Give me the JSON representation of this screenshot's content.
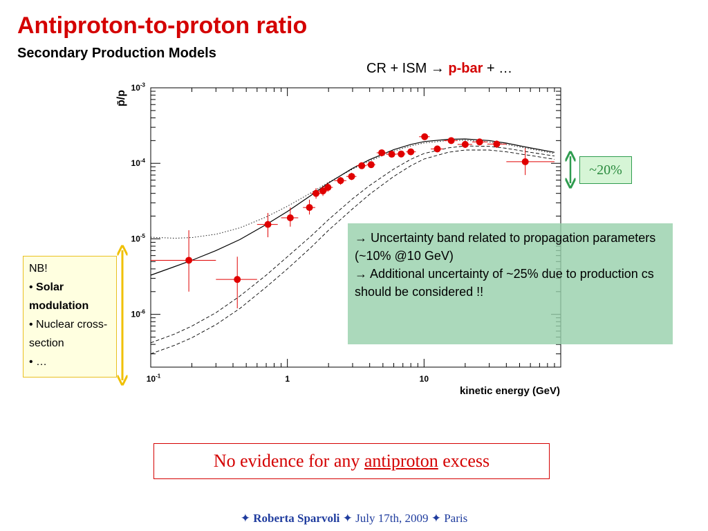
{
  "slide": {
    "title": "Antiproton-to-proton ratio",
    "subtitle": "Secondary Production Models",
    "reaction": {
      "prefix": "CR + ISM ",
      "arrow": "→",
      "product": "p-bar",
      "suffix": " + …"
    },
    "uncertainty_label": "~20%",
    "note": {
      "line1_arrow": "→",
      "line1": " Uncertainty band related to propagation parameters (~10% @10 GeV)",
      "line2_arrow": "→",
      "line2": " Additional uncertainty of ~25% due to production cs should be considered !!"
    },
    "nb": {
      "heading": "NB!",
      "bullet1": "Solar modulation",
      "bullet2": "Nuclear cross-section",
      "bullet3": "…"
    },
    "conclusion": {
      "before": "No evidence for any ",
      "emph": "antiproton",
      "after": " excess"
    },
    "footer": {
      "star": "✦",
      "author": "Roberta Sparvoli",
      "date": "July 17th, 2009",
      "place": "Paris"
    },
    "colors": {
      "title": "#d40000",
      "data_points": "#e00000",
      "arrow_green": "#2f9c4f",
      "arrow_yellow": "#f0c000",
      "footer": "#1f3c9e"
    }
  },
  "chart_data": {
    "type": "scatter",
    "ylabel": "p̄/p",
    "xlabel": "kinetic energy (GeV)",
    "x_scale": "log",
    "y_scale": "log",
    "xlim": [
      0.1,
      100
    ],
    "ylim": [
      2e-07,
      0.001
    ],
    "x_ticks": [
      {
        "value": 0.1,
        "base": "10",
        "exp": "-1"
      },
      {
        "value": 1,
        "base": "1",
        "exp": ""
      },
      {
        "value": 10,
        "base": "10",
        "exp": ""
      }
    ],
    "y_ticks": [
      {
        "value": 0.001,
        "base": "10",
        "exp": "-3"
      },
      {
        "value": 0.0001,
        "base": "10",
        "exp": "-4"
      },
      {
        "value": 1e-05,
        "base": "10",
        "exp": "-5"
      },
      {
        "value": 1e-06,
        "base": "10",
        "exp": "-6"
      }
    ],
    "points": [
      {
        "x": 0.19,
        "y": 5.2e-06,
        "xlo": 0.1,
        "xhi": 0.3,
        "ylo": 2e-06,
        "yhi": 1.3e-05
      },
      {
        "x": 0.43,
        "y": 2.9e-06,
        "xlo": 0.3,
        "xhi": 0.6,
        "ylo": 1.2e-06,
        "yhi": 5.8e-06
      },
      {
        "x": 0.72,
        "y": 1.55e-05,
        "xlo": 0.6,
        "xhi": 0.85,
        "ylo": 1.05e-05,
        "yhi": 2.2e-05
      },
      {
        "x": 1.05,
        "y": 1.9e-05,
        "xlo": 0.9,
        "xhi": 1.2,
        "ylo": 1.45e-05,
        "yhi": 2.6e-05
      },
      {
        "x": 1.45,
        "y": 2.6e-05,
        "xlo": 1.3,
        "xhi": 1.6,
        "ylo": 2.1e-05,
        "yhi": 3.3e-05
      },
      {
        "x": 1.62,
        "y": 4e-05,
        "xlo": 1.5,
        "xhi": 1.75,
        "ylo": 3.4e-05,
        "yhi": 4.7e-05
      },
      {
        "x": 1.82,
        "y": 4.3e-05,
        "xlo": 1.7,
        "xhi": 1.95,
        "ylo": 3.7e-05,
        "yhi": 5e-05
      },
      {
        "x": 1.98,
        "y": 4.8e-05,
        "xlo": 1.85,
        "xhi": 2.15,
        "ylo": 4.2e-05,
        "yhi": 5.5e-05
      },
      {
        "x": 2.45,
        "y": 5.9e-05,
        "xlo": 2.2,
        "xhi": 2.7,
        "ylo": 5.2e-05,
        "yhi": 6.6e-05
      },
      {
        "x": 2.95,
        "y": 6.7e-05,
        "xlo": 2.7,
        "xhi": 3.2,
        "ylo": 6e-05,
        "yhi": 7.5e-05
      },
      {
        "x": 3.5,
        "y": 9.3e-05,
        "xlo": 3.2,
        "xhi": 3.8,
        "ylo": 8.4e-05,
        "yhi": 0.000103
      },
      {
        "x": 4.1,
        "y": 9.6e-05,
        "xlo": 3.8,
        "xhi": 4.4,
        "ylo": 8.7e-05,
        "yhi": 0.000106
      },
      {
        "x": 4.9,
        "y": 0.000138,
        "xlo": 4.5,
        "xhi": 5.3,
        "ylo": 0.000126,
        "yhi": 0.00015
      },
      {
        "x": 5.8,
        "y": 0.000132,
        "xlo": 5.3,
        "xhi": 6.3,
        "ylo": 0.00012,
        "yhi": 0.000144
      },
      {
        "x": 6.8,
        "y": 0.000133,
        "xlo": 6.3,
        "xhi": 7.3,
        "ylo": 0.000121,
        "yhi": 0.000145
      },
      {
        "x": 8.0,
        "y": 0.000142,
        "xlo": 7.4,
        "xhi": 8.7,
        "ylo": 0.00013,
        "yhi": 0.000155
      },
      {
        "x": 10.1,
        "y": 0.000225,
        "xlo": 9.2,
        "xhi": 11.0,
        "ylo": 0.000205,
        "yhi": 0.000245
      },
      {
        "x": 12.5,
        "y": 0.000155,
        "xlo": 11.2,
        "xhi": 13.8,
        "ylo": 0.00014,
        "yhi": 0.00017
      },
      {
        "x": 15.8,
        "y": 0.0002,
        "xlo": 14.0,
        "xhi": 17.6,
        "ylo": 0.000182,
        "yhi": 0.00022
      },
      {
        "x": 20.0,
        "y": 0.000178,
        "xlo": 17.6,
        "xhi": 22.5,
        "ylo": 0.00016,
        "yhi": 0.000198
      },
      {
        "x": 25.5,
        "y": 0.000192,
        "xlo": 22.5,
        "xhi": 29.0,
        "ylo": 0.000172,
        "yhi": 0.000212
      },
      {
        "x": 34.0,
        "y": 0.00018,
        "xlo": 29.0,
        "xhi": 40.0,
        "ylo": 0.00016,
        "yhi": 0.0002
      },
      {
        "x": 55.0,
        "y": 0.000105,
        "xlo": 40.0,
        "xhi": 90.0,
        "ylo": 7e-05,
        "yhi": 0.000158
      }
    ],
    "curves": [
      {
        "style": "solid",
        "x": [
          0.1,
          0.15,
          0.2,
          0.3,
          0.45,
          0.7,
          1.0,
          1.5,
          2.0,
          3.0,
          4.0,
          6.0,
          8.0,
          10,
          15,
          20,
          30,
          40,
          60,
          90
        ],
        "y": [
          3.3e-06,
          4.3e-06,
          5.2e-06,
          7e-06,
          9.8e-06,
          1.55e-05,
          2.3e-05,
          3.8e-05,
          5.5e-05,
          8.6e-05,
          0.000112,
          0.000152,
          0.000178,
          0.000194,
          0.000208,
          0.00021,
          0.0002,
          0.000185,
          0.00016,
          0.00014
        ]
      },
      {
        "style": "dotted",
        "x": [
          0.1,
          0.15,
          0.2,
          0.3,
          0.45,
          0.7,
          1.0,
          1.5,
          2.0,
          3.0,
          4.0,
          6.0,
          8.0,
          10,
          15,
          20,
          30,
          40,
          60,
          90
        ],
        "y": [
          1.05e-05,
          1.02e-05,
          1.04e-05,
          1.15e-05,
          1.4e-05,
          1.95e-05,
          2.7e-05,
          4.1e-05,
          5.6e-05,
          8.4e-05,
          0.000108,
          0.000145,
          0.00017,
          0.000186,
          0.0002,
          0.000202,
          0.000192,
          0.000178,
          0.000155,
          0.000135
        ]
      },
      {
        "style": "dashed",
        "x": [
          0.1,
          0.15,
          0.2,
          0.3,
          0.45,
          0.7,
          1.0,
          1.5,
          2.0,
          3.0,
          4.0,
          6.0,
          8.0,
          10,
          15,
          20,
          30,
          40,
          60,
          90
        ],
        "y": [
          4.2e-07,
          5.5e-07,
          7e-07,
          1.05e-06,
          1.75e-06,
          3.3e-06,
          5.8e-06,
          1.1e-05,
          1.8e-05,
          3.4e-05,
          5.1e-05,
          8.4e-05,
          0.000113,
          0.000135,
          0.00016,
          0.00017,
          0.000168,
          0.000158,
          0.00014,
          0.000125
        ]
      },
      {
        "style": "dashed",
        "x": [
          0.1,
          0.15,
          0.2,
          0.3,
          0.45,
          0.7,
          1.0,
          1.5,
          2.0,
          3.0,
          4.0,
          6.0,
          8.0,
          10,
          15,
          20,
          30,
          40,
          60,
          90
        ],
        "y": [
          3e-07,
          3.9e-07,
          4.9e-07,
          7.3e-07,
          1.2e-06,
          2.3e-06,
          4e-06,
          7.8e-06,
          1.3e-05,
          2.5e-05,
          3.9e-05,
          6.7e-05,
          9.3e-05,
          0.000114,
          0.00014,
          0.00015,
          0.00015,
          0.000142,
          0.000127,
          0.000113
        ]
      }
    ]
  }
}
